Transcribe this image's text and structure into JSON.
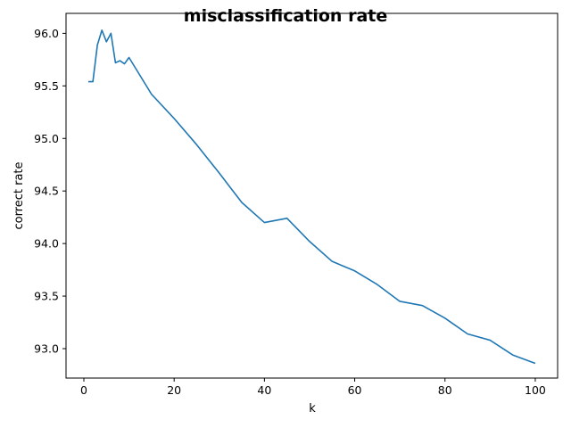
{
  "chart_data": {
    "type": "line",
    "title": "misclassification rate",
    "xlabel": "k",
    "ylabel": "correct rate",
    "xlim": [
      -3.95,
      104.95
    ],
    "ylim": [
      92.72,
      96.19
    ],
    "x_ticks": [
      0,
      20,
      40,
      60,
      80,
      100
    ],
    "x_tick_labels": [
      "0",
      "20",
      "40",
      "60",
      "80",
      "100"
    ],
    "y_ticks": [
      93.0,
      93.5,
      94.0,
      94.5,
      95.0,
      95.5,
      96.0
    ],
    "y_tick_labels": [
      "93.0",
      "93.5",
      "94.0",
      "94.5",
      "95.0",
      "95.5",
      "96.0"
    ],
    "grid": false,
    "series": [
      {
        "color": "#1f77b4",
        "x": [
          1,
          2,
          3,
          4,
          5,
          6,
          7,
          8,
          9,
          10,
          15,
          20,
          25,
          30,
          35,
          40,
          45,
          50,
          55,
          60,
          65,
          70,
          75,
          80,
          85,
          90,
          95,
          100
        ],
        "y": [
          95.54,
          95.54,
          95.89,
          96.03,
          95.92,
          96.0,
          95.72,
          95.74,
          95.71,
          95.77,
          95.42,
          95.19,
          94.94,
          94.67,
          94.39,
          94.2,
          94.24,
          94.02,
          93.83,
          93.74,
          93.61,
          93.45,
          93.41,
          93.29,
          93.14,
          93.08,
          92.94,
          92.86
        ]
      }
    ]
  }
}
